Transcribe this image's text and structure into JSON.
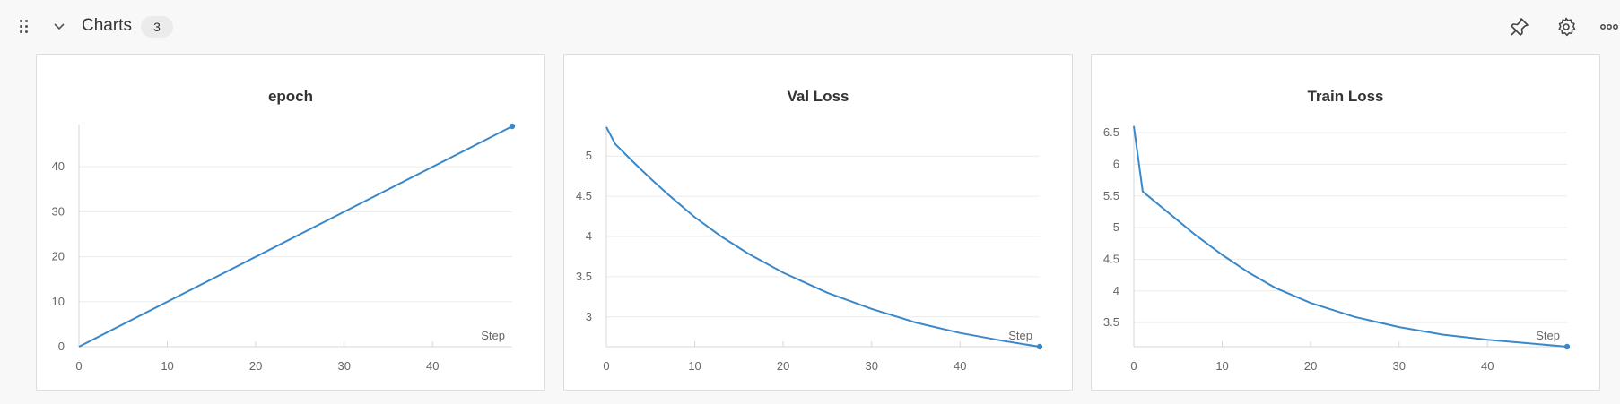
{
  "header": {
    "section_title": "Charts",
    "count": "3",
    "icons": [
      "drag-handle-icon",
      "chevron-down-icon",
      "pin-icon",
      "gear-icon",
      "more-icon"
    ]
  },
  "colors": {
    "series": "#3a88c9",
    "panel_bg": "#ffffff",
    "page_bg": "#f8f8f8"
  },
  "chart_data": [
    {
      "type": "line",
      "title": "epoch",
      "xlabel": "Step",
      "ylabel": "",
      "xlim": [
        0,
        49
      ],
      "ylim": [
        0,
        49
      ],
      "xticks": [
        0,
        10,
        20,
        30,
        40
      ],
      "yticks": [
        0,
        10,
        20,
        30,
        40
      ],
      "ytick_labels": [
        "0",
        "10",
        "20",
        "30",
        "40"
      ],
      "grid": true,
      "series": [
        {
          "x": [
            0,
            49
          ],
          "y": [
            0,
            49
          ]
        }
      ]
    },
    {
      "type": "line",
      "title": "Val Loss",
      "xlabel": "Step",
      "ylabel": "",
      "xlim": [
        0,
        49
      ],
      "ylim": [
        2.63,
        5.37
      ],
      "xticks": [
        0,
        10,
        20,
        30,
        40
      ],
      "yticks": [
        3,
        3.5,
        4,
        4.5,
        5
      ],
      "ytick_labels": [
        "3",
        "3.5",
        "4",
        "4.5",
        "5"
      ],
      "grid": true,
      "series": [
        {
          "x": [
            0,
            1,
            3,
            5,
            7,
            10,
            13,
            16,
            20,
            25,
            30,
            35,
            40,
            45,
            49
          ],
          "y": [
            5.36,
            5.15,
            4.93,
            4.72,
            4.52,
            4.24,
            4.0,
            3.79,
            3.55,
            3.3,
            3.1,
            2.93,
            2.8,
            2.7,
            2.63
          ]
        }
      ]
    },
    {
      "type": "line",
      "title": "Train Loss",
      "xlabel": "Step",
      "ylabel": "",
      "xlim": [
        0,
        49
      ],
      "ylim": [
        3.12,
        6.6
      ],
      "xticks": [
        0,
        10,
        20,
        30,
        40
      ],
      "yticks": [
        3.5,
        4,
        4.5,
        5,
        5.5,
        6,
        6.5
      ],
      "ytick_labels": [
        "3.5",
        "4",
        "4.5",
        "5",
        "5.5",
        "6",
        "6.5"
      ],
      "grid": true,
      "series": [
        {
          "x": [
            0,
            1,
            3,
            5,
            7,
            10,
            13,
            16,
            20,
            25,
            30,
            35,
            40,
            45,
            49
          ],
          "y": [
            6.6,
            5.57,
            5.34,
            5.11,
            4.88,
            4.57,
            4.29,
            4.05,
            3.81,
            3.59,
            3.43,
            3.31,
            3.23,
            3.17,
            3.12
          ]
        }
      ]
    }
  ]
}
